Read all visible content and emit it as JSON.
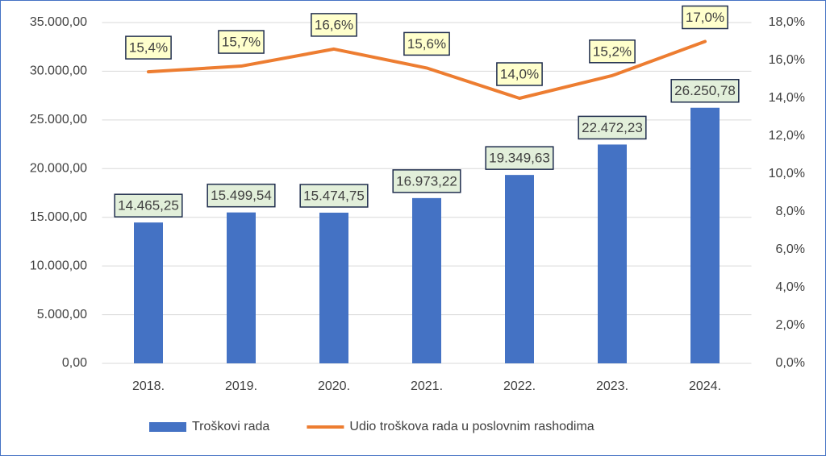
{
  "chart_data": {
    "type": "combo",
    "categories": [
      "2018.",
      "2019.",
      "2020.",
      "2021.",
      "2022.",
      "2023.",
      "2024."
    ],
    "series": [
      {
        "name": "Troškovi rada",
        "type": "bar",
        "color": "#4472c4",
        "values": [
          14465.25,
          15499.54,
          15474.75,
          16973.22,
          19349.63,
          22472.23,
          26250.78
        ],
        "value_labels": [
          "14.465,25",
          "15.499,54",
          "15.474,75",
          "16.973,22",
          "19.349,63",
          "22.472,23",
          "26.250,78"
        ]
      },
      {
        "name": "Udio troškova rada u poslovnim rashodima",
        "type": "line",
        "axis": "y2",
        "color": "#ed7d31",
        "values": [
          15.4,
          15.7,
          16.6,
          15.6,
          14.0,
          15.2,
          17.0
        ],
        "value_labels": [
          "15,4%",
          "15,7%",
          "16,6%",
          "15,6%",
          "14,0%",
          "15,2%",
          "17,0%"
        ]
      }
    ],
    "ylim": [
      0,
      35000
    ],
    "yticks": [
      {
        "value": 0,
        "label": "0,00"
      },
      {
        "value": 5000,
        "label": "5.000,00"
      },
      {
        "value": 10000,
        "label": "10.000,00"
      },
      {
        "value": 15000,
        "label": "15.000,00"
      },
      {
        "value": 20000,
        "label": "20.000,00"
      },
      {
        "value": 25000,
        "label": "25.000,00"
      },
      {
        "value": 30000,
        "label": "30.000,00"
      },
      {
        "value": 35000,
        "label": "35.000,00"
      }
    ],
    "y2lim": [
      0,
      18
    ],
    "y2ticks": [
      {
        "value": 0,
        "label": "0,0%"
      },
      {
        "value": 2,
        "label": "2,0%"
      },
      {
        "value": 4,
        "label": "4,0%"
      },
      {
        "value": 6,
        "label": "6,0%"
      },
      {
        "value": 8,
        "label": "8,0%"
      },
      {
        "value": 10,
        "label": "10,0%"
      },
      {
        "value": 12,
        "label": "12,0%"
      },
      {
        "value": 14,
        "label": "14,0%"
      },
      {
        "value": 16,
        "label": "16,0%"
      },
      {
        "value": 18,
        "label": "18,0%"
      }
    ],
    "grid": true,
    "legend": "bottom"
  }
}
